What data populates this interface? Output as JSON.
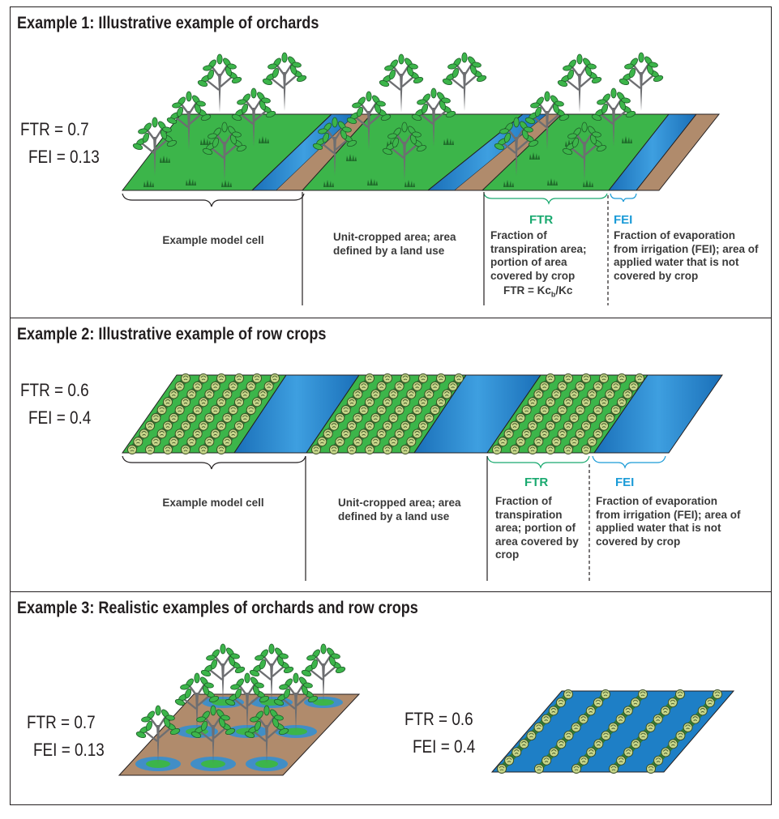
{
  "example1": {
    "title": "Example 1: Illustrative example of orchards",
    "ftr_value": "FTR = 0.7",
    "fei_value": "FEI = 0.13",
    "label_model_cell": "Example model cell",
    "label_unit_area": "Unit-cropped area; area defined by a land use",
    "ftr_tag": "FTR",
    "ftr_desc": "Fraction of transpiration area; portion of area covered by crop",
    "ftr_formula": "FTR = Kc_b/Kc",
    "fei_tag": "FEI",
    "fei_desc": "Fraction of evaporation from irrigation (FEI); area of applied water that is not covered by crop"
  },
  "example2": {
    "title": "Example 2: Illustrative example of row crops",
    "ftr_value": "FTR = 0.6",
    "fei_value": "FEI = 0.4",
    "label_model_cell": "Example model cell",
    "label_unit_area": "Unit-cropped area; area defined by a land use",
    "ftr_tag": "FTR",
    "ftr_desc": "Fraction of transpiration area; portion of area covered by crop",
    "fei_tag": "FEI",
    "fei_desc": "Fraction of evaporation from irrigation (FEI); area of applied water that is not covered by crop"
  },
  "example3": {
    "title": "Example 3: Realistic examples of orchards and row crops",
    "orchard_ftr": "FTR = 0.7",
    "orchard_fei": "FEI = 0.13",
    "row_ftr": "FTR = 0.6",
    "row_fei": "FEI = 0.4"
  },
  "colors": {
    "green": "#3cb54a",
    "water": "#1e7fc6",
    "soil": "#b08b6c",
    "ftr": "#19a96f",
    "fei": "#1b9bd7"
  }
}
